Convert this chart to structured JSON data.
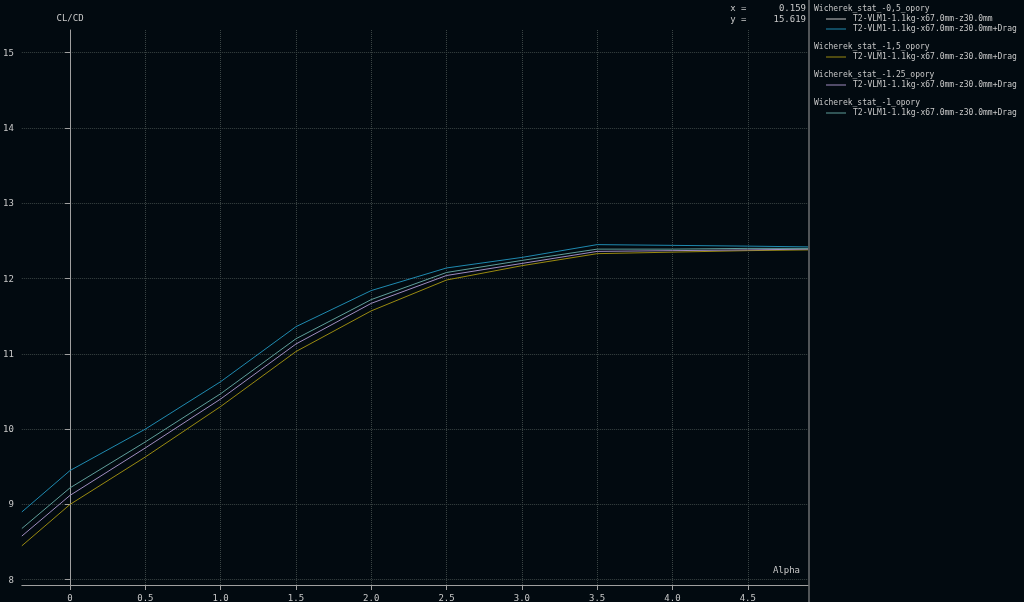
{
  "chart_data": {
    "type": "line",
    "xlabel": "Alpha",
    "ylabel": "CL/CD",
    "annotations": [
      "x =      0.159",
      "y =     15.619",
      "Wicherek_stat_-0,5_opory",
      "Wicherek_stat_-1,5_opory",
      "Wicherek_stat_-1.25_opory",
      "Wicherek_stat_-1_opory"
    ],
    "x": [
      -0.32,
      0,
      0.5,
      1,
      1.5,
      2,
      2.5,
      3,
      3.5,
      4,
      4.5,
      4.9
    ],
    "series": [
      {
        "name": "T2-VLM1-1.1kg-x67.0mm-z30.0mm",
        "color": "#c8c8c8",
        "values": [
          null,
          null,
          null,
          null,
          null,
          null,
          null,
          null,
          null,
          null,
          null,
          null
        ]
      },
      {
        "name": "T2-VLM1-1.1kg-x67.0mm-z30.0mm+Drag",
        "color": "#1f8ab0",
        "values": [
          8.9,
          9.45,
          10.0,
          10.63,
          11.36,
          11.84,
          12.14,
          12.28,
          12.45,
          12.44,
          12.43,
          12.42
        ]
      },
      {
        "name": "T2-VLM1-1.1kg-x67.0mm-z30.0mm+Drag",
        "color": "#9a8a10",
        "values": [
          8.45,
          9.0,
          9.63,
          10.3,
          11.03,
          11.57,
          11.98,
          12.17,
          12.33,
          12.35,
          12.37,
          12.38
        ]
      },
      {
        "name": "T2-VLM1-1.1kg-x67.0mm-z30.0mm+Drag",
        "color": "#a08cc0",
        "values": [
          8.58,
          9.12,
          9.75,
          10.4,
          11.13,
          11.67,
          12.04,
          12.2,
          12.36,
          12.37,
          12.38,
          12.39
        ]
      },
      {
        "name": "T2-VLM1-1.1kg-x67.0mm-z30.0mm+Drag",
        "color": "#5f9e9a",
        "values": [
          8.68,
          9.22,
          9.83,
          10.47,
          11.2,
          11.72,
          12.08,
          12.24,
          12.39,
          12.39,
          12.4,
          12.4
        ]
      }
    ],
    "xlim": [
      -0.32,
      4.9
    ],
    "ylim": [
      7.93,
      15.3
    ],
    "xticks": [
      0,
      0.5,
      {
        "value": 1,
        "label": "1.0"
      },
      1.5,
      {
        "value": 2,
        "label": "2.0"
      },
      2.5,
      {
        "value": 3,
        "label": "3.0"
      },
      3.5,
      {
        "value": 4,
        "label": "4.0"
      },
      4.5
    ],
    "yticks": [
      8,
      9,
      10,
      11,
      12,
      13,
      14,
      15
    ],
    "grid": true,
    "legend": "right",
    "marker": "none",
    "line_style": "solid"
  }
}
